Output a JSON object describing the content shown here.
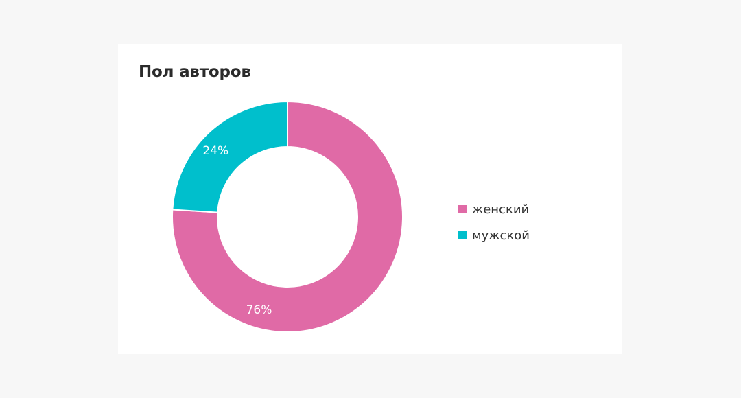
{
  "chart_data": {
    "type": "pie",
    "title": "Пол авторов",
    "donut": true,
    "legend_position": "right",
    "slices": [
      {
        "label": "женский",
        "value": 76,
        "value_label": "76%",
        "color": "#e06aa6"
      },
      {
        "label": "мужской",
        "value": 24,
        "value_label": "24%",
        "color": "#00bfcc"
      }
    ]
  }
}
